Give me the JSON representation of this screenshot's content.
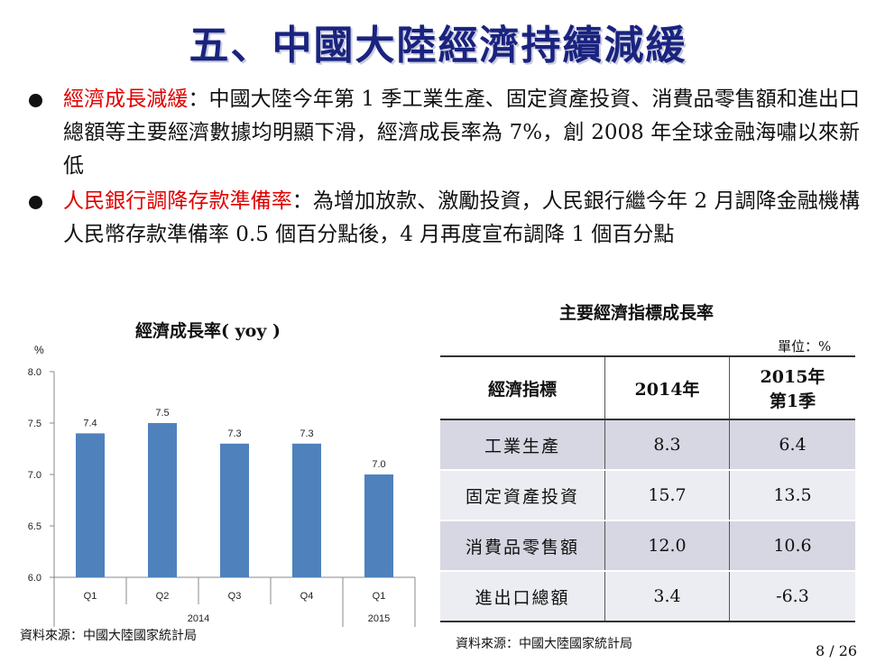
{
  "title": "五、中國大陸經濟持續減緩",
  "bullets": [
    {
      "highlight": "經濟成長減緩",
      "text": "：中國大陸今年第 1 季工業生產、固定資產投資、消費品零售額和進出口總額等主要經濟數據均明顯下滑，經濟成長率為 7%，創 2008 年全球金融海嘯以來新低"
    },
    {
      "highlight": "人民銀行調降存款準備率",
      "text": "：為增加放款、激勵投資，人民銀行繼今年 2 月調降金融機構人民幣存款準備率 0.5 個百分點後，4 月再度宣布調降 1 個百分點"
    }
  ],
  "chart": {
    "title": "經濟成長率( yoy )",
    "unit": "%",
    "source": "資料來源：中國大陸國家統計局"
  },
  "chart_data": {
    "type": "bar",
    "title": "經濟成長率( yoy )",
    "ylabel": "%",
    "categories": [
      "Q1",
      "Q2",
      "Q3",
      "Q4",
      "Q1"
    ],
    "groups": [
      {
        "label": "2014",
        "count": 4
      },
      {
        "label": "2015",
        "count": 1
      }
    ],
    "values": [
      7.4,
      7.5,
      7.3,
      7.3,
      7.0
    ],
    "value_labels": [
      "7.4",
      "7.5",
      "7.3",
      "7.3",
      "7.0"
    ],
    "yticks": [
      "8.0",
      "7.5",
      "7.0",
      "6.5",
      "6.0"
    ],
    "ylim": [
      6.0,
      8.0
    ],
    "bar_color": "#4f81bd"
  },
  "table": {
    "title": "主要經濟指標成長率",
    "unit": "單位：%",
    "headers": [
      "經濟指標",
      "2014年",
      "2015年",
      "第1季"
    ],
    "rows": [
      [
        "工業生產",
        "8.3",
        "6.4"
      ],
      [
        "固定資產投資",
        "15.7",
        "13.5"
      ],
      [
        "消費品零售額",
        "12.0",
        "10.6"
      ],
      [
        "進出口總額",
        "3.4",
        "-6.3"
      ]
    ],
    "source": "資料來源：中國大陸國家統計局"
  },
  "page_number": "8 / 26"
}
